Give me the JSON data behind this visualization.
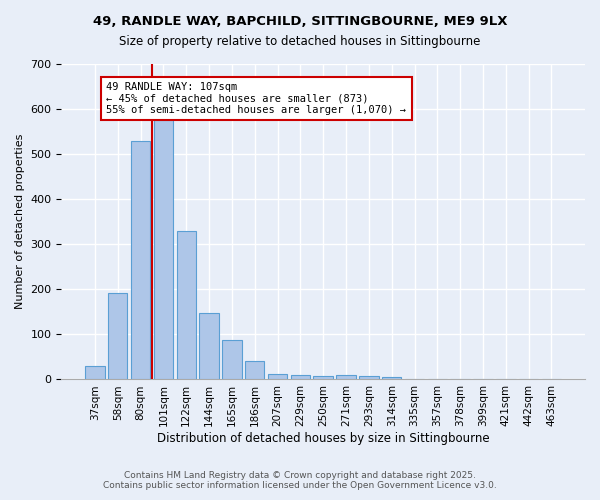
{
  "title1": "49, RANDLE WAY, BAPCHILD, SITTINGBOURNE, ME9 9LX",
  "title2": "Size of property relative to detached houses in Sittingbourne",
  "xlabel": "Distribution of detached houses by size in Sittingbourne",
  "ylabel": "Number of detached properties",
  "bar_labels": [
    "37sqm",
    "58sqm",
    "80sqm",
    "101sqm",
    "122sqm",
    "144sqm",
    "165sqm",
    "186sqm",
    "207sqm",
    "229sqm",
    "250sqm",
    "271sqm",
    "293sqm",
    "314sqm",
    "335sqm",
    "357sqm",
    "378sqm",
    "399sqm",
    "421sqm",
    "442sqm",
    "463sqm"
  ],
  "bar_values": [
    30,
    192,
    530,
    575,
    330,
    148,
    88,
    40,
    12,
    10,
    8,
    10,
    8,
    5,
    0,
    0,
    0,
    0,
    0,
    0,
    0
  ],
  "bar_color": "#aec6e8",
  "bar_edge_color": "#5a9fd4",
  "vline_x_index": 3,
  "vline_color": "#cc0000",
  "annotation_text": "49 RANDLE WAY: 107sqm\n← 45% of detached houses are smaller (873)\n55% of semi-detached houses are larger (1,070) →",
  "annotation_box_color": "#ffffff",
  "annotation_box_edge": "#cc0000",
  "ylim": [
    0,
    700
  ],
  "yticks": [
    0,
    100,
    200,
    300,
    400,
    500,
    600,
    700
  ],
  "footer1": "Contains HM Land Registry data © Crown copyright and database right 2025.",
  "footer2": "Contains public sector information licensed under the Open Government Licence v3.0.",
  "bg_color": "#e8eef8",
  "grid_color": "#ffffff"
}
